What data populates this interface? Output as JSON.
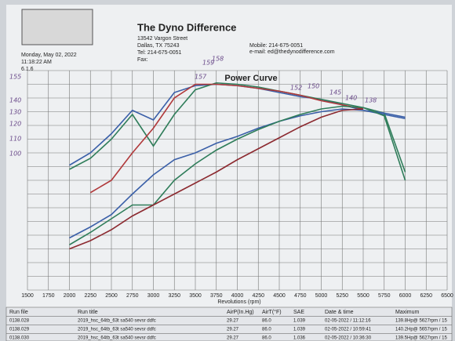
{
  "header": {
    "company": "The Dyno Difference",
    "street": "13542 Vargon Street",
    "city": "Dallas, TX  75243",
    "tel": "Tel:    214-675-0051",
    "fax": "Fax:",
    "mobile": "Mobile:   214-675-0051",
    "email": "e-mail:   ed@thedynodifference.com",
    "date": "Monday, May 02, 2022",
    "time": "11:18:22 AM",
    "version": "6.1.6"
  },
  "chart_data": {
    "type": "line",
    "title": "Power Curve",
    "x_label": "Revolutions (rpm)",
    "x": [
      2000,
      2250,
      2500,
      2750,
      3000,
      3250,
      3500,
      3750,
      4000,
      4250,
      4500,
      4750,
      5000,
      5250,
      5500,
      5750,
      6000
    ],
    "xlim": [
      1500,
      6500
    ],
    "xticks": [
      1500,
      1750,
      2000,
      2250,
      2500,
      2750,
      3000,
      3250,
      3500,
      3750,
      4000,
      4250,
      4500,
      4750,
      5000,
      5250,
      5500,
      5750,
      6000,
      6250,
      6500
    ],
    "ylim": [
      0,
      160
    ],
    "grid": true,
    "series": [
      {
        "color": "#3a5fa8",
        "values": [
          91,
          100,
          114,
          131,
          124,
          144,
          149,
          150,
          149,
          147,
          144,
          141,
          139,
          135,
          131,
          128,
          125
        ]
      },
      {
        "color": "#2f7d5a",
        "values": [
          88,
          96,
          110,
          128,
          105,
          128,
          146,
          151,
          150,
          148,
          145,
          142,
          139,
          136,
          133,
          129,
          86
        ]
      },
      {
        "color": "#b0383a",
        "values": [
          null,
          71,
          80,
          100,
          118,
          140,
          150,
          150,
          149,
          147,
          145,
          142,
          138,
          135,
          132,
          null,
          null
        ]
      },
      {
        "color": "#3a5fa8",
        "values": [
          38,
          46,
          55,
          70,
          84,
          95,
          100,
          107,
          112,
          118,
          123,
          127,
          130,
          132,
          131,
          129,
          126
        ]
      },
      {
        "color": "#2f7d5a",
        "values": [
          33,
          42,
          52,
          62,
          62,
          80,
          92,
          102,
          110,
          117,
          123,
          128,
          132,
          134,
          133,
          127,
          80
        ]
      },
      {
        "color": "#8c2a30",
        "values": [
          30,
          36,
          44,
          54,
          62,
          70,
          78,
          86,
          95,
          103,
          111,
          119,
          126,
          131,
          132,
          null,
          null
        ]
      }
    ],
    "annotations": [
      "155",
      "140",
      "130",
      "120",
      "110",
      "100",
      "158",
      "159",
      "157",
      "152",
      "150",
      "145",
      "140",
      "138"
    ]
  },
  "table": {
    "columns": [
      "Run file",
      "Run title",
      "AirP(In.Hg)",
      "AirT(°F)",
      "SAE",
      "Date & time",
      "Maximum"
    ],
    "rows": [
      [
        "0138.028",
        "2019_hsc_64tb_63t sa540 sevsr ddfc",
        "29.27",
        "86.0",
        "1.039",
        "02-05-2022 / 11:12:16",
        "139.8Hp@ 5627rpm / 15"
      ],
      [
        "0138.029",
        "2019_hsc_64tb_63t sa540 sevsr ddfc",
        "29.27",
        "86.0",
        "1.039",
        "02-05-2022 / 10:59:41",
        "140.2Hp@ 5657rpm / 15"
      ],
      [
        "0138.030",
        "2019_hsc_64tb_63t sa540 sevsr ddfc",
        "29.27",
        "86.0",
        "1.036",
        "02-05-2022 / 10:36:30",
        "139.5Hp@ 5627rpm / 15"
      ]
    ]
  }
}
